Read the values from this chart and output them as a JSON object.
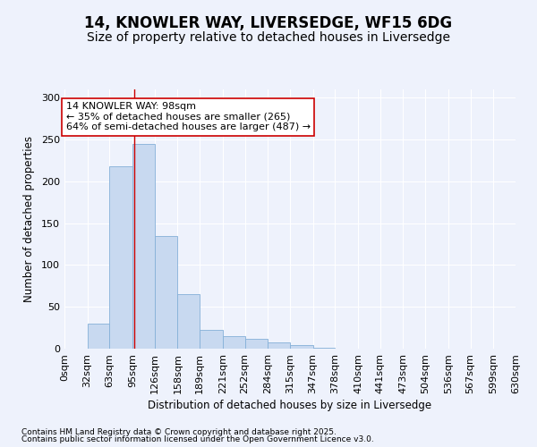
{
  "title1": "14, KNOWLER WAY, LIVERSEDGE, WF15 6DG",
  "title2": "Size of property relative to detached houses in Liversedge",
  "xlabel": "Distribution of detached houses by size in Liversedge",
  "ylabel": "Number of detached properties",
  "bins": [
    0,
    32,
    63,
    95,
    126,
    158,
    189,
    221,
    252,
    284,
    315,
    347,
    378,
    410,
    441,
    473,
    504,
    536,
    567,
    599,
    630
  ],
  "bin_labels": [
    "0sqm",
    "32sqm",
    "63sqm",
    "95sqm",
    "126sqm",
    "158sqm",
    "189sqm",
    "221sqm",
    "252sqm",
    "284sqm",
    "315sqm",
    "347sqm",
    "378sqm",
    "410sqm",
    "441sqm",
    "473sqm",
    "504sqm",
    "536sqm",
    "567sqm",
    "599sqm",
    "630sqm"
  ],
  "bar_heights": [
    0,
    30,
    218,
    245,
    135,
    65,
    22,
    15,
    12,
    8,
    4,
    1,
    0,
    0,
    0,
    0,
    0,
    0,
    0,
    0
  ],
  "bar_color": "#c8d9f0",
  "bar_edge_color": "#85b0d8",
  "vline_x": 98,
  "vline_color": "#cc0000",
  "annotation_text": "14 KNOWLER WAY: 98sqm\n← 35% of detached houses are smaller (265)\n64% of semi-detached houses are larger (487) →",
  "annotation_box_color": "white",
  "annotation_box_edge": "#cc0000",
  "ylim": [
    0,
    310
  ],
  "yticks": [
    0,
    50,
    100,
    150,
    200,
    250,
    300
  ],
  "background_color": "#eef2fc",
  "plot_bg_color": "#eef2fc",
  "footer1": "Contains HM Land Registry data © Crown copyright and database right 2025.",
  "footer2": "Contains public sector information licensed under the Open Government Licence v3.0.",
  "title1_fontsize": 12,
  "title2_fontsize": 10,
  "xlabel_fontsize": 8.5,
  "ylabel_fontsize": 8.5,
  "tick_fontsize": 8,
  "annot_fontsize": 8,
  "footer_fontsize": 6.5
}
